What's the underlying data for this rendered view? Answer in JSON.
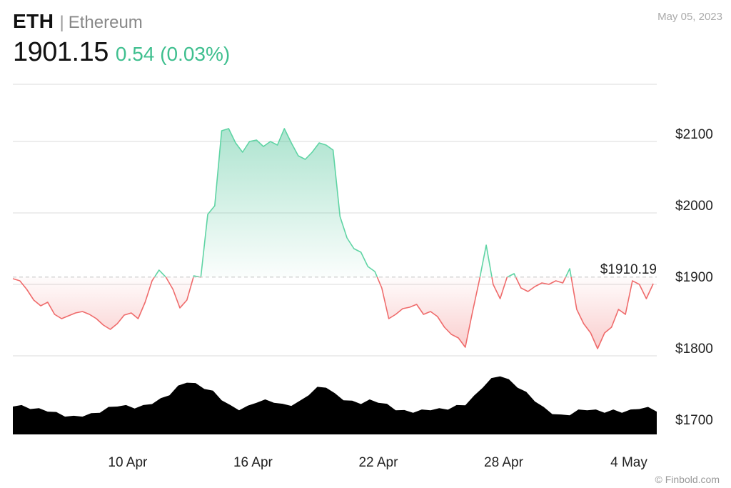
{
  "header": {
    "ticker": "ETH",
    "separator": "|",
    "name": "Ethereum",
    "price": "1901.15",
    "change": "0.54 (0.03%)",
    "date": "May 05, 2023"
  },
  "credit": "© Finbold.com",
  "colors": {
    "up_line": "#5fd4a4",
    "up_fill": "#3fbf8f",
    "down_line": "#ef6b6b",
    "down_fill": "#ef6b6b",
    "volume": "#000000",
    "grid": "#e2e2e2",
    "change_text": "#3fbf8f"
  },
  "chart_data": {
    "type": "area",
    "reference_value": 1910.19,
    "reference_label": "$1910.19",
    "ylim": [
      1690,
      2180
    ],
    "yticks": [
      {
        "value": 1700,
        "label": "$1700"
      },
      {
        "value": 1800,
        "label": "$1800"
      },
      {
        "value": 1900,
        "label": "$1900"
      },
      {
        "value": 2000,
        "label": "$2000"
      },
      {
        "value": 2100,
        "label": "$2100"
      }
    ],
    "x_range": [
      "2023-04-05",
      "2023-05-05"
    ],
    "xticks": [
      {
        "date": "2023-04-10",
        "label": "10 Apr"
      },
      {
        "date": "2023-04-16",
        "label": "16 Apr"
      },
      {
        "date": "2023-04-22",
        "label": "22 Apr"
      },
      {
        "date": "2023-04-28",
        "label": "28 Apr"
      },
      {
        "date": "2023-05-04",
        "label": "4 May"
      }
    ],
    "price_series": [
      [
        "2023-04-05 00:00",
        1908
      ],
      [
        "2023-04-05 08:00",
        1905
      ],
      [
        "2023-04-05 16:00",
        1893
      ],
      [
        "2023-04-06 00:00",
        1878
      ],
      [
        "2023-04-06 08:00",
        1870
      ],
      [
        "2023-04-06 16:00",
        1875
      ],
      [
        "2023-04-07 00:00",
        1858
      ],
      [
        "2023-04-07 08:00",
        1852
      ],
      [
        "2023-04-07 16:00",
        1856
      ],
      [
        "2023-04-08 00:00",
        1860
      ],
      [
        "2023-04-08 08:00",
        1862
      ],
      [
        "2023-04-08 16:00",
        1858
      ],
      [
        "2023-04-09 00:00",
        1852
      ],
      [
        "2023-04-09 08:00",
        1843
      ],
      [
        "2023-04-09 16:00",
        1837
      ],
      [
        "2023-04-10 00:00",
        1845
      ],
      [
        "2023-04-10 08:00",
        1857
      ],
      [
        "2023-04-10 16:00",
        1860
      ],
      [
        "2023-04-11 00:00",
        1852
      ],
      [
        "2023-04-11 08:00",
        1875
      ],
      [
        "2023-04-11 16:00",
        1905
      ],
      [
        "2023-04-12 00:00",
        1920
      ],
      [
        "2023-04-12 08:00",
        1910
      ],
      [
        "2023-04-12 16:00",
        1893
      ],
      [
        "2023-04-13 00:00",
        1867
      ],
      [
        "2023-04-13 08:00",
        1878
      ],
      [
        "2023-04-13 16:00",
        1912
      ],
      [
        "2023-04-14 00:00",
        1910
      ],
      [
        "2023-04-14 08:00",
        1998
      ],
      [
        "2023-04-14 16:00",
        2010
      ],
      [
        "2023-04-15 00:00",
        2115
      ],
      [
        "2023-04-15 08:00",
        2118
      ],
      [
        "2023-04-15 16:00",
        2098
      ],
      [
        "2023-04-16 00:00",
        2085
      ],
      [
        "2023-04-16 08:00",
        2100
      ],
      [
        "2023-04-16 16:00",
        2102
      ],
      [
        "2023-04-17 00:00",
        2093
      ],
      [
        "2023-04-17 08:00",
        2100
      ],
      [
        "2023-04-17 16:00",
        2095
      ],
      [
        "2023-04-18 00:00",
        2118
      ],
      [
        "2023-04-18 08:00",
        2098
      ],
      [
        "2023-04-18 16:00",
        2080
      ],
      [
        "2023-04-19 00:00",
        2075
      ],
      [
        "2023-04-19 08:00",
        2085
      ],
      [
        "2023-04-19 16:00",
        2098
      ],
      [
        "2023-04-20 00:00",
        2095
      ],
      [
        "2023-04-20 08:00",
        2088
      ],
      [
        "2023-04-20 16:00",
        1995
      ],
      [
        "2023-04-21 00:00",
        1965
      ],
      [
        "2023-04-21 08:00",
        1950
      ],
      [
        "2023-04-21 16:00",
        1945
      ],
      [
        "2023-04-22 00:00",
        1925
      ],
      [
        "2023-04-22 08:00",
        1918
      ],
      [
        "2023-04-22 16:00",
        1895
      ],
      [
        "2023-04-23 00:00",
        1852
      ],
      [
        "2023-04-23 08:00",
        1858
      ],
      [
        "2023-04-23 16:00",
        1866
      ],
      [
        "2023-04-24 00:00",
        1868
      ],
      [
        "2023-04-24 08:00",
        1872
      ],
      [
        "2023-04-24 16:00",
        1858
      ],
      [
        "2023-04-25 00:00",
        1862
      ],
      [
        "2023-04-25 08:00",
        1855
      ],
      [
        "2023-04-25 16:00",
        1840
      ],
      [
        "2023-04-26 00:00",
        1830
      ],
      [
        "2023-04-26 08:00",
        1825
      ],
      [
        "2023-04-26 16:00",
        1812
      ],
      [
        "2023-04-27 00:00",
        1860
      ],
      [
        "2023-04-27 08:00",
        1905
      ],
      [
        "2023-04-27 16:00",
        1955
      ],
      [
        "2023-04-28 00:00",
        1900
      ],
      [
        "2023-04-28 08:00",
        1880
      ],
      [
        "2023-04-28 16:00",
        1910
      ],
      [
        "2023-04-29 00:00",
        1915
      ],
      [
        "2023-04-29 08:00",
        1895
      ],
      [
        "2023-04-29 16:00",
        1890
      ],
      [
        "2023-04-30 00:00",
        1897
      ],
      [
        "2023-04-30 08:00",
        1902
      ],
      [
        "2023-04-30 16:00",
        1900
      ],
      [
        "2023-05-01 00:00",
        1905
      ],
      [
        "2023-05-01 08:00",
        1902
      ],
      [
        "2023-05-01 16:00",
        1922
      ],
      [
        "2023-05-02 00:00",
        1865
      ],
      [
        "2023-05-02 08:00",
        1845
      ],
      [
        "2023-05-02 16:00",
        1832
      ],
      [
        "2023-05-03 00:00",
        1810
      ],
      [
        "2023-05-03 08:00",
        1832
      ],
      [
        "2023-05-03 16:00",
        1840
      ],
      [
        "2023-05-04 00:00",
        1865
      ],
      [
        "2023-05-04 08:00",
        1858
      ],
      [
        "2023-05-04 16:00",
        1905
      ],
      [
        "2023-05-05 00:00",
        1900
      ],
      [
        "2023-05-05 08:00",
        1880
      ],
      [
        "2023-05-05 16:00",
        1901
      ]
    ],
    "volume_relative": [
      0.46,
      0.45,
      0.42,
      0.4,
      0.38,
      0.34,
      0.3,
      0.28,
      0.3,
      0.32,
      0.36,
      0.42,
      0.46,
      0.45,
      0.43,
      0.45,
      0.5,
      0.56,
      0.64,
      0.76,
      0.84,
      0.8,
      0.74,
      0.68,
      0.56,
      0.45,
      0.4,
      0.44,
      0.52,
      0.54,
      0.52,
      0.47,
      0.47,
      0.52,
      0.64,
      0.74,
      0.76,
      0.64,
      0.56,
      0.52,
      0.5,
      0.54,
      0.52,
      0.47,
      0.4,
      0.37,
      0.36,
      0.38,
      0.4,
      0.4,
      0.41,
      0.45,
      0.48,
      0.6,
      0.76,
      0.88,
      0.94,
      0.86,
      0.76,
      0.66,
      0.54,
      0.42,
      0.34,
      0.3,
      0.32,
      0.38,
      0.4,
      0.38,
      0.36,
      0.38,
      0.36,
      0.38,
      0.42,
      0.42,
      0.38
    ]
  }
}
